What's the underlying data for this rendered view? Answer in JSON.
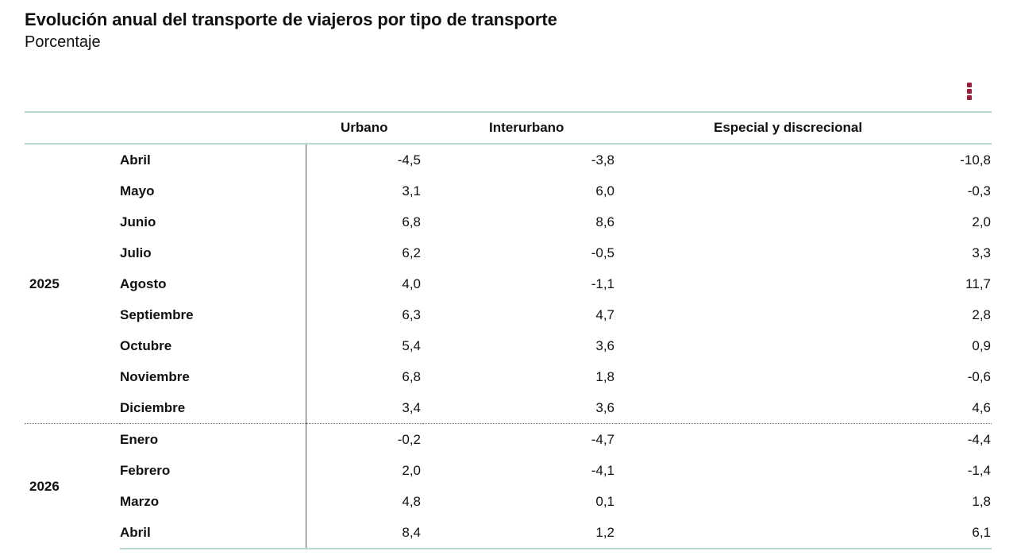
{
  "title": "Evolución anual del transporte de viajeros por tipo de transporte",
  "subtitle": "Porcentaje",
  "menu_icon": "more-vertical-icon",
  "accent_color": "#9c1e3b",
  "border_color": "#b9d8d4",
  "chart_data": {
    "type": "table",
    "title": "Evolución anual del transporte de viajeros por tipo de transporte",
    "subtitle": "Porcentaje",
    "columns": [
      "Urbano",
      "Interurbano",
      "Especial y discrecional"
    ],
    "groups": [
      {
        "year": "2025",
        "rows": [
          {
            "month": "Abril",
            "values": [
              "-4,5",
              "-3,8",
              "-10,8"
            ]
          },
          {
            "month": "Mayo",
            "values": [
              "3,1",
              "6,0",
              "-0,3"
            ]
          },
          {
            "month": "Junio",
            "values": [
              "6,8",
              "8,6",
              "2,0"
            ]
          },
          {
            "month": "Julio",
            "values": [
              "6,2",
              "-0,5",
              "3,3"
            ]
          },
          {
            "month": "Agosto",
            "values": [
              "4,0",
              "-1,1",
              "11,7"
            ]
          },
          {
            "month": "Septiembre",
            "values": [
              "6,3",
              "4,7",
              "2,8"
            ]
          },
          {
            "month": "Octubre",
            "values": [
              "5,4",
              "3,6",
              "0,9"
            ]
          },
          {
            "month": "Noviembre",
            "values": [
              "6,8",
              "1,8",
              "-0,6"
            ]
          },
          {
            "month": "Diciembre",
            "values": [
              "3,4",
              "3,6",
              "4,6"
            ]
          }
        ]
      },
      {
        "year": "2026",
        "rows": [
          {
            "month": "Enero",
            "values": [
              "-0,2",
              "-4,7",
              "-4,4"
            ]
          },
          {
            "month": "Febrero",
            "values": [
              "2,0",
              "-4,1",
              "-1,4"
            ]
          },
          {
            "month": "Marzo",
            "values": [
              "4,8",
              "0,1",
              "1,8"
            ]
          },
          {
            "month": "Abril",
            "values": [
              "8,4",
              "1,2",
              "6,1"
            ]
          }
        ]
      }
    ]
  }
}
